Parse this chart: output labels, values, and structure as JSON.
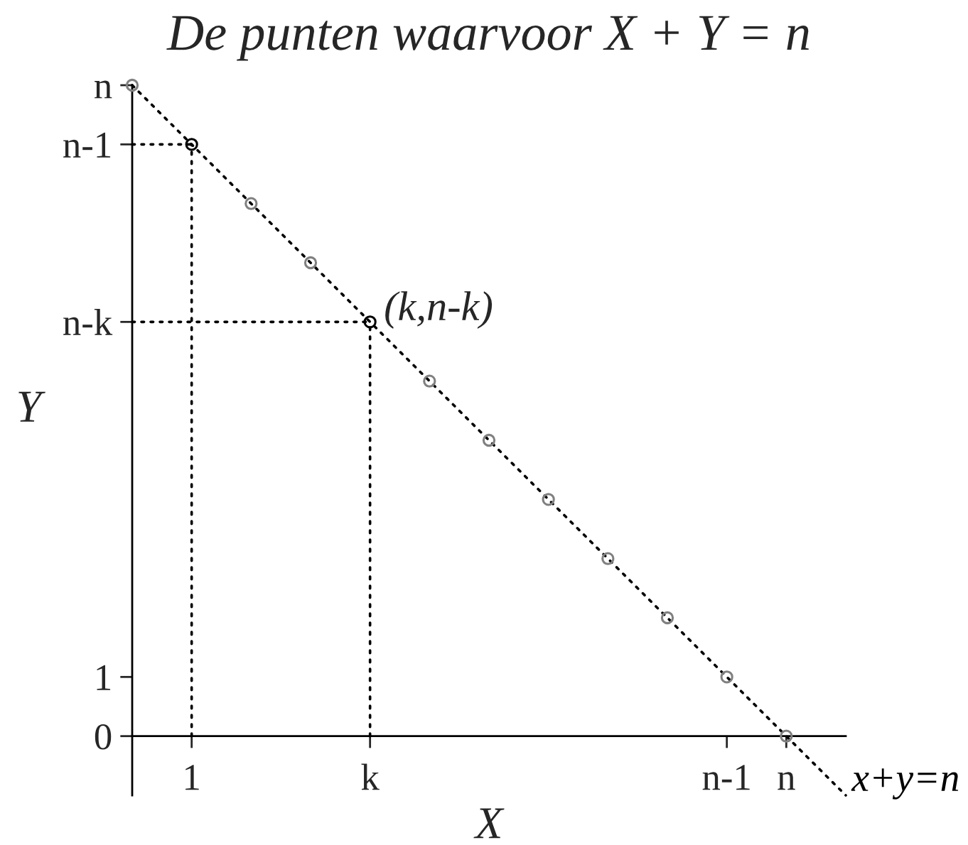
{
  "chart_data": {
    "type": "scatter",
    "title": "De punten waarvoor X + Y = n",
    "xlabel": "X",
    "ylabel": "Y",
    "categories": [
      null,
      "1",
      null,
      null,
      "k",
      null,
      null,
      null,
      null,
      null,
      "n-1",
      "n",
      null
    ],
    "ylim": [
      -1,
      11
    ],
    "yticks": [
      0,
      1,
      {
        "value": 7,
        "label": "n-k"
      },
      {
        "value": 10,
        "label": "n-1"
      },
      {
        "value": 11,
        "label": "n"
      }
    ],
    "series": [
      {
        "type": "line",
        "name": "x+y=n",
        "values": [
          11,
          10,
          9,
          8,
          7,
          6,
          5,
          4,
          3,
          2,
          1,
          0,
          -1
        ],
        "color": "#000000",
        "line_style": "dotted"
      },
      {
        "type": "line",
        "values": [
          10,
          10,
          null,
          null,
          null,
          null,
          null,
          null,
          null,
          null,
          null,
          null,
          null
        ],
        "color": "#000000",
        "line_style": "dotted"
      },
      {
        "type": "line",
        "values": [
          7,
          7,
          7,
          7,
          7,
          null,
          null,
          null,
          null,
          null,
          null,
          null,
          null
        ],
        "color": "#000000",
        "line_style": "dotted"
      },
      {
        "type": "lollipop",
        "values": [
          null,
          10,
          null,
          null,
          7,
          null,
          null,
          null,
          null,
          null,
          null,
          null,
          null
        ],
        "color": "#000000",
        "line_style": "dotted",
        "marker": "circle"
      },
      {
        "values": [
          11,
          null,
          9,
          8,
          null,
          6,
          5,
          4,
          3,
          2,
          1,
          0,
          null
        ],
        "color": "#808080",
        "marker": "circle"
      }
    ],
    "annotations": [
      {
        "text": "(k,n-k)",
        "x": "k",
        "y": 7
      }
    ]
  }
}
